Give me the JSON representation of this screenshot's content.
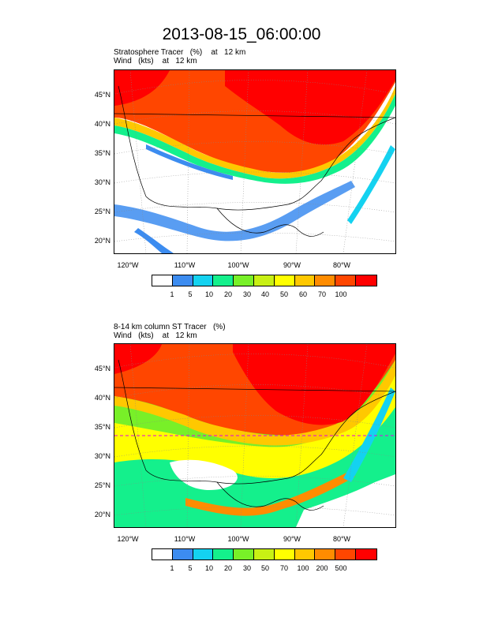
{
  "title": "2013-08-15_06:00:00",
  "panel1": {
    "line1": "Stratosphere Tracer   (%)    at   12 km",
    "line2": "Wind   (kts)    at   12 km",
    "colorbar_labels": [
      "1",
      "5",
      "10",
      "20",
      "30",
      "40",
      "50",
      "60",
      "70",
      "100"
    ]
  },
  "panel2": {
    "line1": "8-14 km column ST Tracer   (%)",
    "line2": "Wind   (kts)    at   12 km",
    "colorbar_labels": [
      "1",
      "5",
      "10",
      "20",
      "30",
      "50",
      "70",
      "100",
      "200",
      "500"
    ]
  },
  "lat_labels": [
    "45°N",
    "40°N",
    "35°N",
    "30°N",
    "25°N",
    "20°N"
  ],
  "lon_labels": [
    "120°W",
    "110°W",
    "100°W",
    "90°W",
    "80°W"
  ],
  "colors": [
    "#ffffff",
    "#3c8cf0",
    "#14d2f0",
    "#14f08c",
    "#78f028",
    "#c8f014",
    "#ffff00",
    "#ffc800",
    "#ff8c00",
    "#ff4600",
    "#ff0000"
  ]
}
